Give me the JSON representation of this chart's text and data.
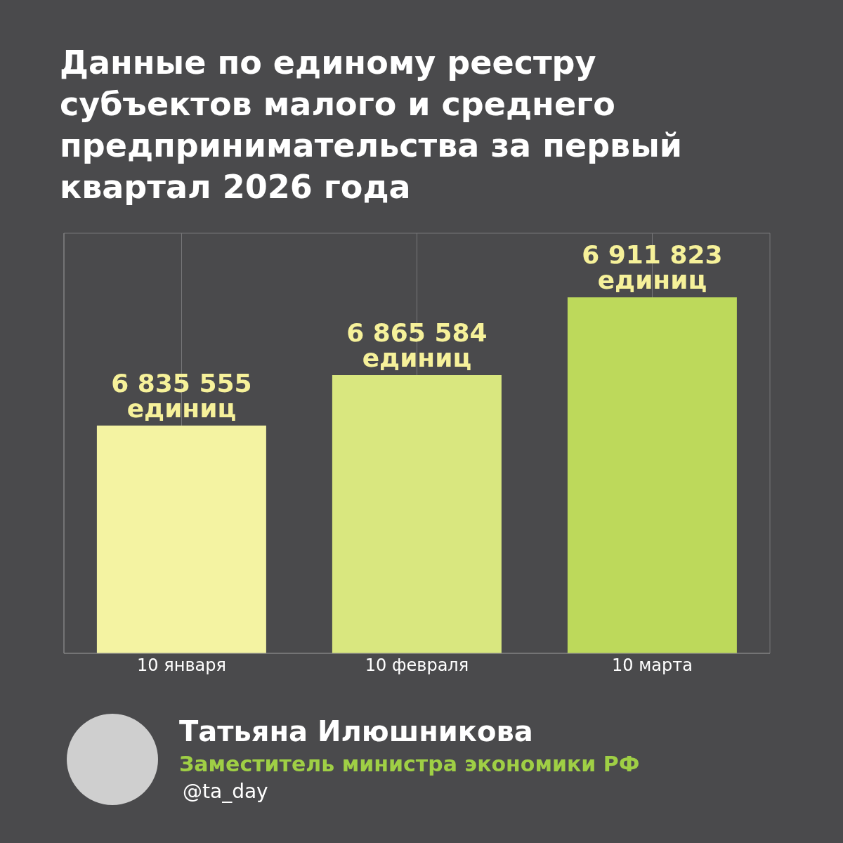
{
  "chart_data": {
    "type": "bar",
    "title": "Данные по единому реестру субъектов малого и среднего предпринимательства за первый квартал 2026 года",
    "categories": [
      "10 января",
      "10 февраля",
      "10 марта"
    ],
    "values": [
      6835555,
      6865584,
      6911823
    ],
    "colors": [
      "#f4f3a2",
      "#d9e77f",
      "#bdd95b"
    ],
    "value_labels": [
      "6 835 555 единиц",
      "6 865 584 единиц",
      "6 911 823 единиц"
    ],
    "ylim": [
      6700000,
      6950000
    ],
    "grid": true,
    "tick_labels": "x",
    "annotations": [
      "Татьяна Илюшникова",
      "Заместитель министра экономики РФ",
      "@ta_day"
    ]
  }
}
